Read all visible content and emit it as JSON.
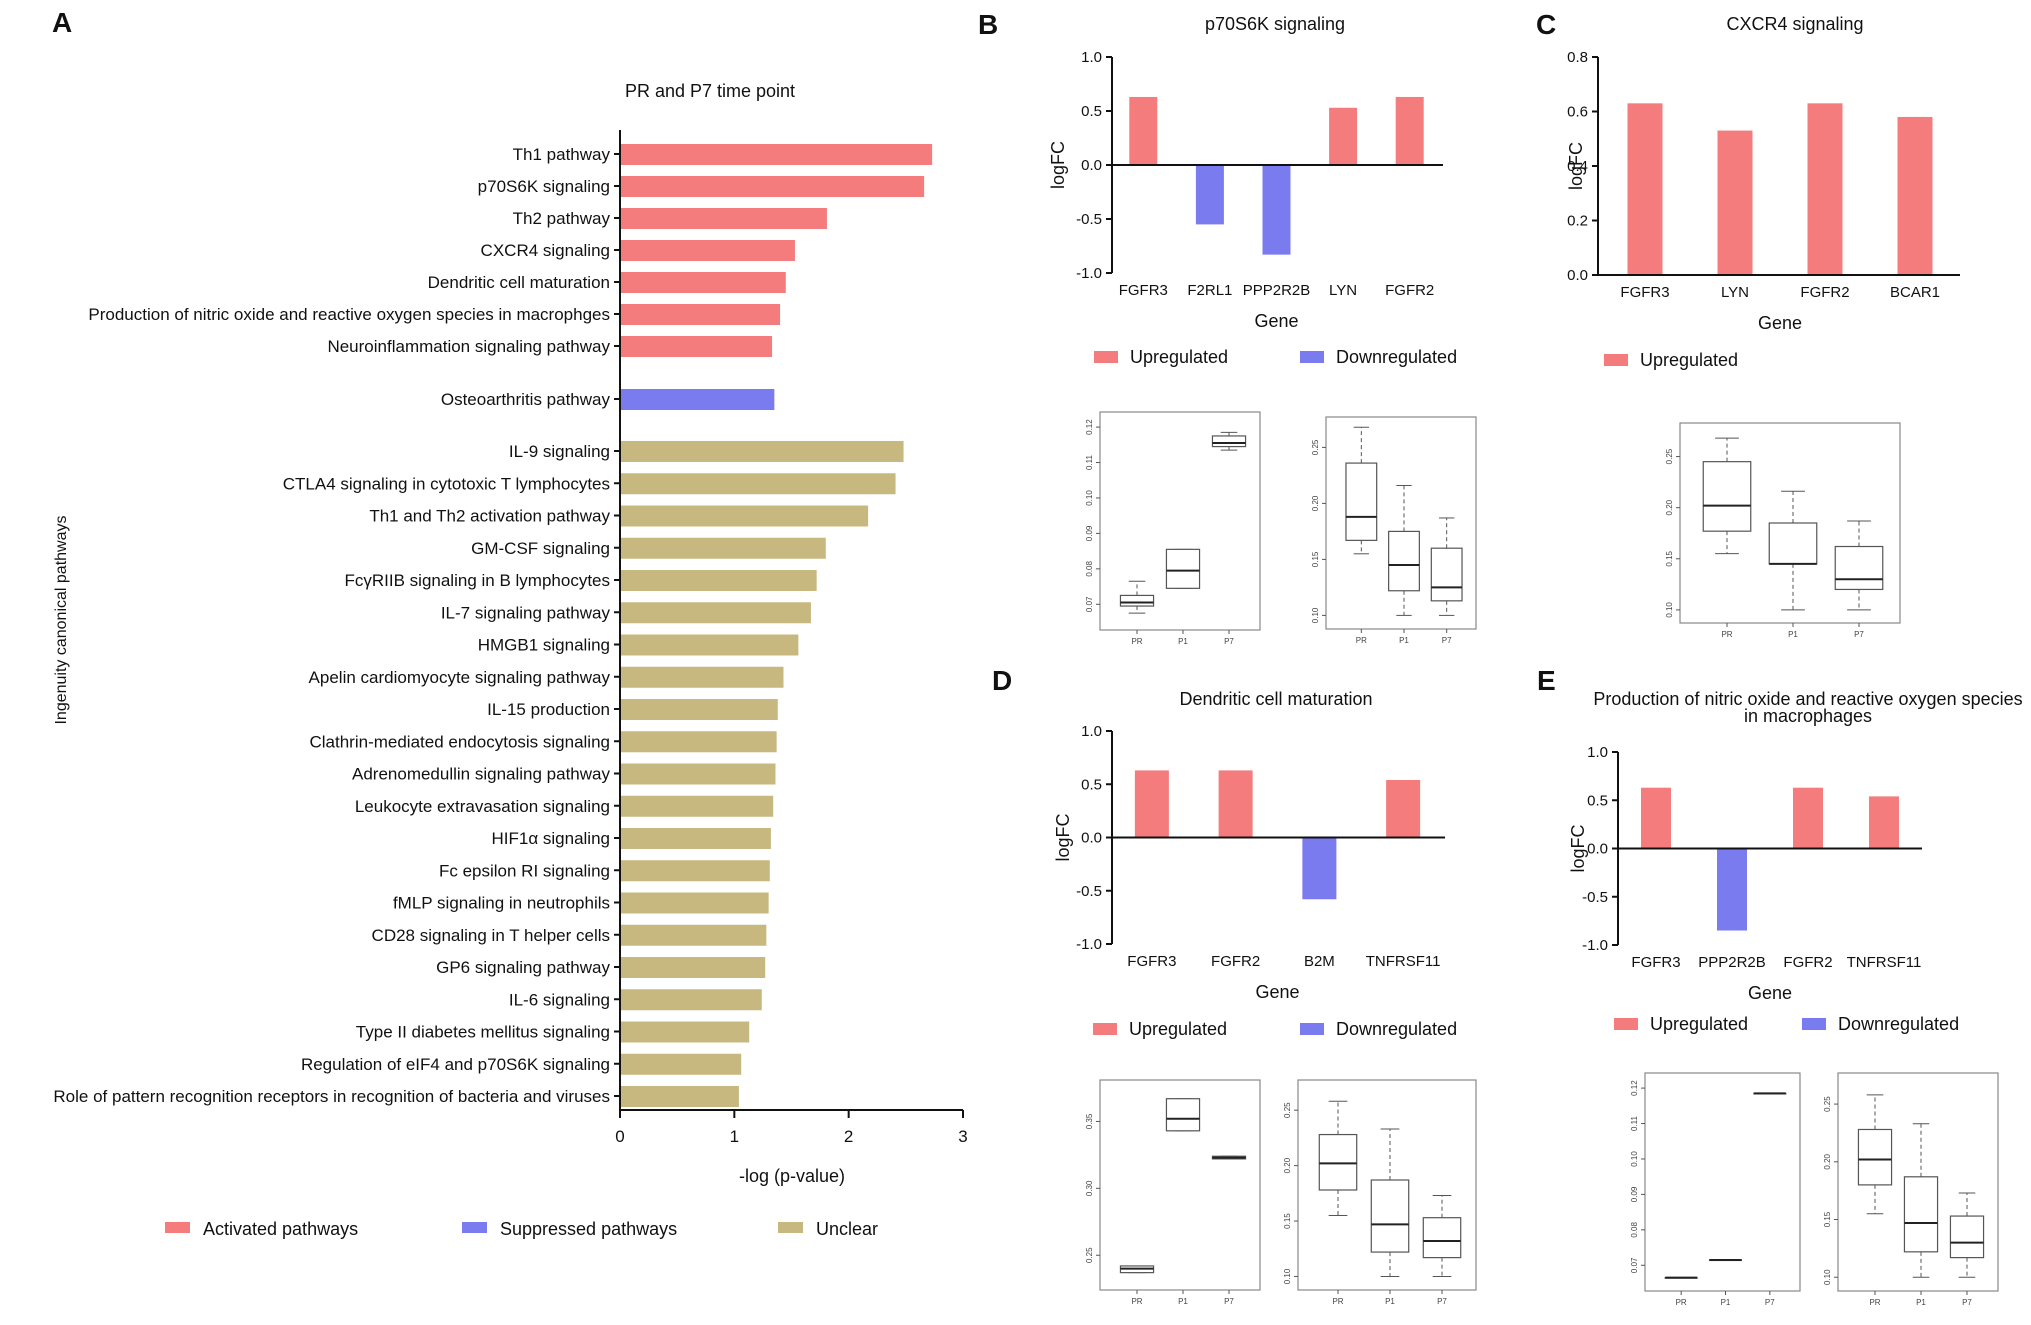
{
  "colors": {
    "up": "#f47c7c",
    "down": "#7b7bf0",
    "unclear": "#c7b87f"
  },
  "panels": {
    "A": "A",
    "B": "B",
    "C": "C",
    "D": "D",
    "E": "E"
  },
  "chart_data": [
    {
      "id": "A",
      "type": "bar",
      "orientation": "horizontal",
      "title": "PR and P7 time point",
      "xlabel": "-log (p-value)",
      "ylabel": "Ingenuity canonical pathways",
      "xlim": [
        0,
        3
      ],
      "xticks": [
        "0",
        "1",
        "2",
        "3"
      ],
      "categories": [
        "Th1 pathway",
        "p70S6K signaling",
        "Th2 pathway",
        "CXCR4 signaling",
        "Dendritic cell maturation",
        "Production of nitric oxide and reactive oxygen species in macrophges",
        "Neuroinflammation signaling pathway",
        "Osteoarthritis pathway",
        "IL-9 signaling",
        "CTLA4 signaling in cytotoxic T lymphocytes",
        "Th1 and Th2 activation pathway",
        "GM-CSF signaling",
        "FcγRIIB signaling in B lymphocytes",
        "IL-7 signaling pathway",
        "HMGB1 signaling",
        "Apelin cardiomyocyte signaling pathway",
        "IL-15 production",
        "Clathrin-mediated endocytosis signaling",
        "Adrenomedullin signaling pathway",
        "Leukocyte extravasation signaling",
        "HIF1α signaling",
        "Fc epsilon RI signaling",
        "fMLP signaling in neutrophils",
        "CD28 signaling in T helper cells",
        "GP6 signaling pathway",
        "IL-6 signaling",
        "Type II diabetes mellitus signaling",
        "Regulation of eIF4 and p70S6K signaling",
        "Role of pattern recognition receptors in recognition of bacteria and viruses"
      ],
      "values": [
        2.73,
        2.66,
        1.81,
        1.53,
        1.45,
        1.4,
        1.33,
        1.35,
        2.48,
        2.41,
        2.17,
        1.8,
        1.72,
        1.67,
        1.56,
        1.43,
        1.38,
        1.37,
        1.36,
        1.34,
        1.32,
        1.31,
        1.3,
        1.28,
        1.27,
        1.24,
        1.13,
        1.06,
        1.04
      ],
      "groups": [
        "up",
        "up",
        "up",
        "up",
        "up",
        "up",
        "up",
        "down",
        "unclear",
        "unclear",
        "unclear",
        "unclear",
        "unclear",
        "unclear",
        "unclear",
        "unclear",
        "unclear",
        "unclear",
        "unclear",
        "unclear",
        "unclear",
        "unclear",
        "unclear",
        "unclear",
        "unclear",
        "unclear",
        "unclear",
        "unclear",
        "unclear"
      ],
      "legend": [
        "Activated pathways",
        "Suppressed pathways",
        "Unclear"
      ]
    },
    {
      "id": "B",
      "type": "bar",
      "title": "p70S6K signaling",
      "xlabel": "Gene",
      "ylabel": "logFC",
      "ylim": [
        -1.0,
        1.0
      ],
      "yticks": [
        "1.0",
        "0.5",
        "0.0",
        "-0.5",
        "-1.0"
      ],
      "categories": [
        "FGFR3",
        "F2RL1",
        "PPP2R2B",
        "LYN",
        "FGFR2"
      ],
      "values": [
        0.63,
        -0.55,
        -0.83,
        0.53,
        0.63
      ],
      "legend": [
        "Upregulated",
        "Downregulated"
      ]
    },
    {
      "id": "C",
      "type": "bar",
      "title": "CXCR4 signaling",
      "xlabel": "Gene",
      "ylabel": "logFC",
      "ylim": [
        0.0,
        0.8
      ],
      "yticks": [
        "0.8",
        "0.6",
        "0.4",
        "0.2",
        "0.0"
      ],
      "categories": [
        "FGFR3",
        "LYN",
        "FGFR2",
        "BCAR1"
      ],
      "values": [
        0.63,
        0.53,
        0.63,
        0.58
      ],
      "legend": [
        "Upregulated"
      ]
    },
    {
      "id": "D",
      "type": "bar",
      "title": "Dendritic cell maturation",
      "xlabel": "Gene",
      "ylabel": "logFC",
      "ylim": [
        -1.0,
        1.0
      ],
      "yticks": [
        "1.0",
        "0.5",
        "0.0",
        "-0.5",
        "-1.0"
      ],
      "categories": [
        "FGFR3",
        "FGFR2",
        "B2M",
        "TNFRSF11"
      ],
      "values": [
        0.63,
        0.63,
        -0.58,
        0.54
      ],
      "legend": [
        "Upregulated",
        "Downregulated"
      ]
    },
    {
      "id": "E",
      "type": "bar",
      "title": "Production of nitric oxide and reactive oxygen species",
      "title2": "in macrophages",
      "xlabel": "Gene",
      "ylabel": "logFC",
      "ylim": [
        -1.0,
        1.0
      ],
      "yticks": [
        "1.0",
        "0.5",
        "0.0",
        "-0.5",
        "-1.0"
      ],
      "categories": [
        "FGFR3",
        "PPP2R2B",
        "FGFR2",
        "TNFRSF11"
      ],
      "values": [
        0.63,
        -0.85,
        0.63,
        0.54
      ],
      "legend": [
        "Upregulated",
        "Downregulated"
      ]
    },
    {
      "id": "B1",
      "type": "box",
      "groups": [
        "PR",
        "P1",
        "P7"
      ],
      "yticks": [
        "0.12",
        "0.11",
        "0.10",
        "0.09",
        "0.08",
        "0.07"
      ],
      "ylim": [
        0.065,
        0.122
      ],
      "stats": [
        [
          0.0695,
          0.0705,
          0.0725,
          0.0675,
          0.0765
        ],
        [
          0.0745,
          0.0795,
          0.0855,
          0.0745,
          0.0855
        ],
        [
          0.1145,
          0.1155,
          0.1175,
          0.1135,
          0.1185
        ]
      ]
    },
    {
      "id": "B2",
      "type": "box",
      "groups": [
        "PR",
        "P1",
        "P7"
      ],
      "yticks": [
        "0.25",
        "0.20",
        "0.15",
        "0.10"
      ],
      "ylim": [
        0.095,
        0.27
      ],
      "stats": [
        [
          0.167,
          0.188,
          0.236,
          0.155,
          0.268
        ],
        [
          0.122,
          0.145,
          0.175,
          0.1,
          0.216
        ],
        [
          0.113,
          0.125,
          0.16,
          0.1,
          0.187
        ]
      ]
    },
    {
      "id": "C1",
      "type": "box",
      "groups": [
        "PR",
        "P1",
        "P7"
      ],
      "yticks": [
        "0.25",
        "0.20",
        "0.15",
        "0.10"
      ],
      "ylim": [
        0.095,
        0.275
      ],
      "stats": [
        [
          0.177,
          0.202,
          0.245,
          0.155,
          0.268
        ],
        [
          0.145,
          0.145,
          0.185,
          0.1,
          0.216
        ],
        [
          0.12,
          0.13,
          0.162,
          0.1,
          0.187
        ]
      ]
    },
    {
      "id": "D1",
      "type": "box",
      "groups": [
        "PR",
        "P1",
        "P7"
      ],
      "yticks": [
        "0.35",
        "0.30",
        "0.25"
      ],
      "ylim": [
        0.23,
        0.375
      ],
      "stats": [
        [
          0.237,
          0.24,
          0.242,
          0.237,
          0.242
        ],
        [
          0.343,
          0.352,
          0.367,
          0.343,
          0.367
        ],
        [
          0.322,
          0.323,
          0.324,
          0.322,
          0.324
        ]
      ]
    },
    {
      "id": "D2",
      "type": "box",
      "groups": [
        "PR",
        "P1",
        "P7"
      ],
      "yticks": [
        "0.25",
        "0.20",
        "0.15",
        "0.10"
      ],
      "ylim": [
        0.095,
        0.27
      ],
      "stats": [
        [
          0.178,
          0.202,
          0.228,
          0.155,
          0.258
        ],
        [
          0.122,
          0.147,
          0.187,
          0.1,
          0.233
        ],
        [
          0.117,
          0.132,
          0.153,
          0.1,
          0.173
        ]
      ]
    },
    {
      "id": "E1",
      "type": "box",
      "groups": [
        "PR",
        "P1",
        "P7"
      ],
      "yticks": [
        "0.12",
        "0.11",
        "0.10",
        "0.09",
        "0.08",
        "0.07"
      ],
      "ylim": [
        0.065,
        0.122
      ],
      "stats": [
        [
          0.0665,
          0.0665,
          0.0665,
          0.0665,
          0.0665
        ],
        [
          0.0715,
          0.0715,
          0.0715,
          0.0715,
          0.0715
        ],
        [
          0.1185,
          0.1185,
          0.1185,
          0.1185,
          0.1185
        ]
      ]
    },
    {
      "id": "E2",
      "type": "box",
      "groups": [
        "PR",
        "P1",
        "P7"
      ],
      "yticks": [
        "0.25",
        "0.20",
        "0.15",
        "0.10"
      ],
      "ylim": [
        0.095,
        0.27
      ],
      "stats": [
        [
          0.18,
          0.202,
          0.228,
          0.155,
          0.258
        ],
        [
          0.122,
          0.147,
          0.187,
          0.1,
          0.233
        ],
        [
          0.117,
          0.13,
          0.153,
          0.1,
          0.173
        ]
      ]
    }
  ]
}
